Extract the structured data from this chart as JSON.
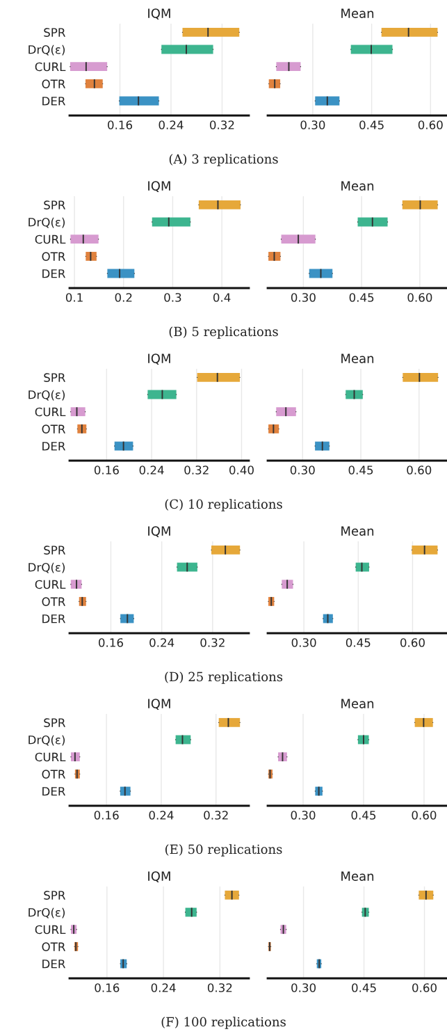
{
  "chart_data": [
    {
      "type": "box",
      "orientation": "horizontal",
      "title": "IQM",
      "categories": [
        "SPR",
        "DrQ(ε)",
        "CURL",
        "OTR",
        "DER"
      ],
      "grid": "x",
      "xlim": [
        0.081,
        0.362
      ],
      "xticks": [
        0.16,
        0.24,
        0.32
      ],
      "annotations": [
        "(A) 3 replications"
      ],
      "colors": [
        "#e6a83a",
        "#3db58f",
        "#d79bd0",
        "#e0823e",
        "#3b92c4"
      ],
      "boxes": [
        {
          "low": 0.258,
          "q1": 0.258,
          "median": 0.298,
          "q3": 0.347,
          "high": 0.347
        },
        {
          "low": 0.225,
          "q1": 0.225,
          "median": 0.264,
          "q3": 0.306,
          "high": 0.306
        },
        {
          "low": 0.082,
          "q1": 0.082,
          "median": 0.107,
          "q3": 0.14,
          "high": 0.14
        },
        {
          "low": 0.106,
          "q1": 0.106,
          "median": 0.12,
          "q3": 0.133,
          "high": 0.133
        },
        {
          "low": 0.159,
          "q1": 0.159,
          "median": 0.189,
          "q3": 0.221,
          "high": 0.221
        }
      ]
    },
    {
      "type": "box",
      "orientation": "horizontal",
      "title": "Mean",
      "categories": [
        null,
        null,
        null,
        null,
        null
      ],
      "grid": "x",
      "tick_labels": "x",
      "xlim": [
        0.185,
        0.642
      ],
      "xticks": [
        {
          "value": 0.3,
          "label": "0.30"
        },
        0.45,
        {
          "value": 0.6,
          "label": "0.60"
        }
      ],
      "colors": [
        "#e6a83a",
        "#3db58f",
        "#d79bd0",
        "#e0823e",
        "#3b92c4"
      ],
      "boxes": [
        {
          "low": 0.475,
          "q1": 0.475,
          "median": 0.544,
          "q3": 0.618,
          "high": 0.618
        },
        {
          "low": 0.397,
          "q1": 0.397,
          "median": 0.449,
          "q3": 0.503,
          "high": 0.503
        },
        {
          "low": 0.207,
          "q1": 0.207,
          "median": 0.239,
          "q3": 0.269,
          "high": 0.269
        },
        {
          "low": 0.188,
          "q1": 0.188,
          "median": 0.203,
          "q3": 0.217,
          "high": 0.217
        },
        {
          "low": 0.306,
          "q1": 0.306,
          "median": 0.337,
          "q3": 0.368,
          "high": 0.368
        }
      ]
    },
    {
      "type": "box",
      "orientation": "horizontal",
      "title": "IQM",
      "categories": [
        "SPR",
        "DrQ(ε)",
        "CURL",
        "OTR",
        "DER"
      ],
      "grid": "x",
      "xlim": [
        0.09,
        0.455
      ],
      "xticks": [
        0.1,
        0.2,
        0.3,
        0.4
      ],
      "annotations": [
        "(B) 5 replications"
      ],
      "colors": [
        "#e6a83a",
        "#3db58f",
        "#d79bd0",
        "#e0823e",
        "#3b92c4"
      ],
      "boxes": [
        {
          "low": 0.353,
          "q1": 0.353,
          "median": 0.392,
          "q3": 0.438,
          "high": 0.438
        },
        {
          "low": 0.258,
          "q1": 0.258,
          "median": 0.292,
          "q3": 0.336,
          "high": 0.336
        },
        {
          "low": 0.092,
          "q1": 0.092,
          "median": 0.118,
          "q3": 0.149,
          "high": 0.149
        },
        {
          "low": 0.123,
          "q1": 0.123,
          "median": 0.133,
          "q3": 0.145,
          "high": 0.145
        },
        {
          "low": 0.167,
          "q1": 0.167,
          "median": 0.192,
          "q3": 0.222,
          "high": 0.222
        }
      ]
    },
    {
      "type": "box",
      "orientation": "horizontal",
      "title": "Mean",
      "categories": [
        null,
        null,
        null,
        null,
        null
      ],
      "grid": "x",
      "tick_labels": "x",
      "xlim": [
        0.208,
        0.67
      ],
      "xticks": [
        {
          "value": 0.3,
          "label": "0.30"
        },
        0.45,
        {
          "value": 0.6,
          "label": "0.60"
        }
      ],
      "colors": [
        "#e6a83a",
        "#3db58f",
        "#d79bd0",
        "#e0823e",
        "#3b92c4"
      ],
      "boxes": [
        {
          "low": 0.555,
          "q1": 0.555,
          "median": 0.601,
          "q3": 0.646,
          "high": 0.646
        },
        {
          "low": 0.44,
          "q1": 0.44,
          "median": 0.478,
          "q3": 0.517,
          "high": 0.517
        },
        {
          "low": 0.243,
          "q1": 0.243,
          "median": 0.287,
          "q3": 0.331,
          "high": 0.331
        },
        {
          "low": 0.21,
          "q1": 0.21,
          "median": 0.225,
          "q3": 0.241,
          "high": 0.241
        },
        {
          "low": 0.315,
          "q1": 0.315,
          "median": 0.345,
          "q3": 0.375,
          "high": 0.375
        }
      ]
    },
    {
      "type": "box",
      "orientation": "horizontal",
      "title": "IQM",
      "categories": [
        "SPR",
        "DrQ(ε)",
        "CURL",
        "OTR",
        "DER"
      ],
      "grid": "x",
      "xlim": [
        0.094,
        0.413
      ],
      "xticks": [
        0.16,
        0.24,
        0.32,
        {
          "value": 0.4,
          "label": "0.40"
        }
      ],
      "annotations": [
        "(C) 10 replications"
      ],
      "colors": [
        "#e6a83a",
        "#3db58f",
        "#d79bd0",
        "#e0823e",
        "#3b92c4"
      ],
      "boxes": [
        {
          "low": 0.321,
          "q1": 0.321,
          "median": 0.357,
          "q3": 0.397,
          "high": 0.397
        },
        {
          "low": 0.233,
          "q1": 0.233,
          "median": 0.259,
          "q3": 0.284,
          "high": 0.284
        },
        {
          "low": 0.096,
          "q1": 0.096,
          "median": 0.107,
          "q3": 0.122,
          "high": 0.122
        },
        {
          "low": 0.108,
          "q1": 0.108,
          "median": 0.116,
          "q3": 0.124,
          "high": 0.124
        },
        {
          "low": 0.174,
          "q1": 0.174,
          "median": 0.19,
          "q3": 0.207,
          "high": 0.207
        }
      ]
    },
    {
      "type": "box",
      "orientation": "horizontal",
      "title": "Mean",
      "categories": [
        null,
        null,
        null,
        null,
        null
      ],
      "grid": "x",
      "tick_labels": "x",
      "xlim": [
        0.21,
        0.672
      ],
      "xticks": [
        {
          "value": 0.3,
          "label": "0.30"
        },
        0.45,
        {
          "value": 0.6,
          "label": "0.60"
        }
      ],
      "colors": [
        "#e6a83a",
        "#3db58f",
        "#d79bd0",
        "#e0823e",
        "#3b92c4"
      ],
      "boxes": [
        {
          "low": 0.558,
          "q1": 0.558,
          "median": 0.601,
          "q3": 0.649,
          "high": 0.649
        },
        {
          "low": 0.411,
          "q1": 0.411,
          "median": 0.433,
          "q3": 0.455,
          "high": 0.455
        },
        {
          "low": 0.232,
          "q1": 0.232,
          "median": 0.257,
          "q3": 0.283,
          "high": 0.283
        },
        {
          "low": 0.212,
          "q1": 0.212,
          "median": 0.225,
          "q3": 0.239,
          "high": 0.239
        },
        {
          "low": 0.332,
          "q1": 0.332,
          "median": 0.351,
          "q3": 0.369,
          "high": 0.369
        }
      ]
    },
    {
      "type": "box",
      "orientation": "horizontal",
      "title": "IQM",
      "categories": [
        "SPR",
        "DrQ(ε)",
        "CURL",
        "OTR",
        "DER"
      ],
      "grid": "x",
      "xlim": [
        0.095,
        0.377
      ],
      "xticks": [
        0.16,
        0.24,
        0.32
      ],
      "annotations": [
        "(D) 25 replications"
      ],
      "colors": [
        "#e6a83a",
        "#3db58f",
        "#d79bd0",
        "#e0823e",
        "#3b92c4"
      ],
      "boxes": [
        {
          "low": 0.318,
          "q1": 0.318,
          "median": 0.34,
          "q3": 0.363,
          "high": 0.363
        },
        {
          "low": 0.264,
          "q1": 0.264,
          "median": 0.28,
          "q3": 0.296,
          "high": 0.296
        },
        {
          "low": 0.097,
          "q1": 0.097,
          "median": 0.106,
          "q3": 0.114,
          "high": 0.114
        },
        {
          "low": 0.11,
          "q1": 0.11,
          "median": 0.115,
          "q3": 0.121,
          "high": 0.121
        },
        {
          "low": 0.175,
          "q1": 0.175,
          "median": 0.186,
          "q3": 0.196,
          "high": 0.196
        }
      ]
    },
    {
      "type": "box",
      "orientation": "horizontal",
      "title": "Mean",
      "categories": [
        null,
        null,
        null,
        null,
        null
      ],
      "grid": "x",
      "tick_labels": "x",
      "xlim": [
        0.2,
        0.695
      ],
      "xticks": [
        {
          "value": 0.3,
          "label": "0.30"
        },
        0.45,
        {
          "value": 0.6,
          "label": "0.60"
        }
      ],
      "colors": [
        "#e6a83a",
        "#3db58f",
        "#d79bd0",
        "#e0823e",
        "#3b92c4"
      ],
      "boxes": [
        {
          "low": 0.598,
          "q1": 0.598,
          "median": 0.633,
          "q3": 0.669,
          "high": 0.669
        },
        {
          "low": 0.443,
          "q1": 0.443,
          "median": 0.46,
          "q3": 0.48,
          "high": 0.48
        },
        {
          "low": 0.239,
          "q1": 0.239,
          "median": 0.254,
          "q3": 0.27,
          "high": 0.27
        },
        {
          "low": 0.202,
          "q1": 0.202,
          "median": 0.21,
          "q3": 0.218,
          "high": 0.218
        },
        {
          "low": 0.353,
          "q1": 0.353,
          "median": 0.366,
          "q3": 0.38,
          "high": 0.38
        }
      ]
    },
    {
      "type": "box",
      "orientation": "horizontal",
      "title": "IQM",
      "categories": [
        "SPR",
        "DrQ(ε)",
        "CURL",
        "OTR",
        "DER"
      ],
      "grid": "x",
      "xlim": [
        0.106,
        0.368
      ],
      "xticks": [
        0.16,
        0.24,
        0.32
      ],
      "annotations": [
        "(E) 50 replications"
      ],
      "colors": [
        "#e6a83a",
        "#3db58f",
        "#d79bd0",
        "#e0823e",
        "#3b92c4"
      ],
      "boxes": [
        {
          "low": 0.324,
          "q1": 0.324,
          "median": 0.338,
          "q3": 0.355,
          "high": 0.355
        },
        {
          "low": 0.261,
          "q1": 0.261,
          "median": 0.271,
          "q3": 0.283,
          "high": 0.283
        },
        {
          "low": 0.108,
          "q1": 0.108,
          "median": 0.114,
          "q3": 0.121,
          "high": 0.121
        },
        {
          "low": 0.114,
          "q1": 0.114,
          "median": 0.117,
          "q3": 0.121,
          "high": 0.121
        },
        {
          "low": 0.18,
          "q1": 0.18,
          "median": 0.187,
          "q3": 0.195,
          "high": 0.195
        }
      ]
    },
    {
      "type": "box",
      "orientation": "horizontal",
      "title": "Mean",
      "categories": [
        null,
        null,
        null,
        null,
        null
      ],
      "grid": "x",
      "tick_labels": "x",
      "xlim": [
        0.212,
        0.657
      ],
      "xticks": [
        {
          "value": 0.3,
          "label": "0.30"
        },
        0.45,
        {
          "value": 0.6,
          "label": "0.60"
        }
      ],
      "colors": [
        "#e6a83a",
        "#3db58f",
        "#d79bd0",
        "#e0823e",
        "#3b92c4"
      ],
      "boxes": [
        {
          "low": 0.577,
          "q1": 0.577,
          "median": 0.599,
          "q3": 0.622,
          "high": 0.622
        },
        {
          "low": 0.436,
          "q1": 0.436,
          "median": 0.45,
          "q3": 0.463,
          "high": 0.463
        },
        {
          "low": 0.238,
          "q1": 0.238,
          "median": 0.249,
          "q3": 0.26,
          "high": 0.26
        },
        {
          "low": 0.214,
          "q1": 0.214,
          "median": 0.218,
          "q3": 0.224,
          "high": 0.224
        },
        {
          "low": 0.33,
          "q1": 0.33,
          "median": 0.339,
          "q3": 0.348,
          "high": 0.348
        }
      ]
    },
    {
      "type": "box",
      "orientation": "horizontal",
      "title": "IQM",
      "categories": [
        "SPR",
        "DrQ(ε)",
        "CURL",
        "OTR",
        "DER"
      ],
      "grid": "x",
      "xlim": [
        0.107,
        0.361
      ],
      "xticks": [
        0.16,
        0.24,
        0.32
      ],
      "annotations": [
        "(F) 100 replications"
      ],
      "colors": [
        "#e6a83a",
        "#3db58f",
        "#d79bd0",
        "#e0823e",
        "#3b92c4"
      ],
      "boxes": [
        {
          "low": 0.327,
          "q1": 0.327,
          "median": 0.337,
          "q3": 0.347,
          "high": 0.347
        },
        {
          "low": 0.271,
          "q1": 0.271,
          "median": 0.28,
          "q3": 0.287,
          "high": 0.287
        },
        {
          "low": 0.109,
          "q1": 0.109,
          "median": 0.113,
          "q3": 0.117,
          "high": 0.117
        },
        {
          "low": 0.114,
          "q1": 0.114,
          "median": 0.116,
          "q3": 0.119,
          "high": 0.119
        },
        {
          "low": 0.179,
          "q1": 0.179,
          "median": 0.183,
          "q3": 0.188,
          "high": 0.188
        }
      ]
    },
    {
      "type": "box",
      "orientation": "horizontal",
      "title": "Mean",
      "categories": [
        null,
        null,
        null,
        null,
        null
      ],
      "grid": "x",
      "tick_labels": "x",
      "xlim": [
        0.211,
        0.656
      ],
      "xticks": [
        {
          "value": 0.3,
          "label": "0.30"
        },
        0.45,
        {
          "value": 0.6,
          "label": "0.60"
        }
      ],
      "colors": [
        "#e6a83a",
        "#3db58f",
        "#d79bd0",
        "#e0823e",
        "#3b92c4"
      ],
      "boxes": [
        {
          "low": 0.586,
          "q1": 0.586,
          "median": 0.604,
          "q3": 0.622,
          "high": 0.622
        },
        {
          "low": 0.445,
          "q1": 0.445,
          "median": 0.453,
          "q3": 0.462,
          "high": 0.462
        },
        {
          "low": 0.243,
          "q1": 0.243,
          "median": 0.25,
          "q3": 0.257,
          "high": 0.257
        },
        {
          "low": 0.213,
          "q1": 0.213,
          "median": 0.216,
          "q3": 0.219,
          "high": 0.219
        },
        {
          "low": 0.333,
          "q1": 0.333,
          "median": 0.339,
          "q3": 0.344,
          "high": 0.344
        }
      ]
    }
  ]
}
